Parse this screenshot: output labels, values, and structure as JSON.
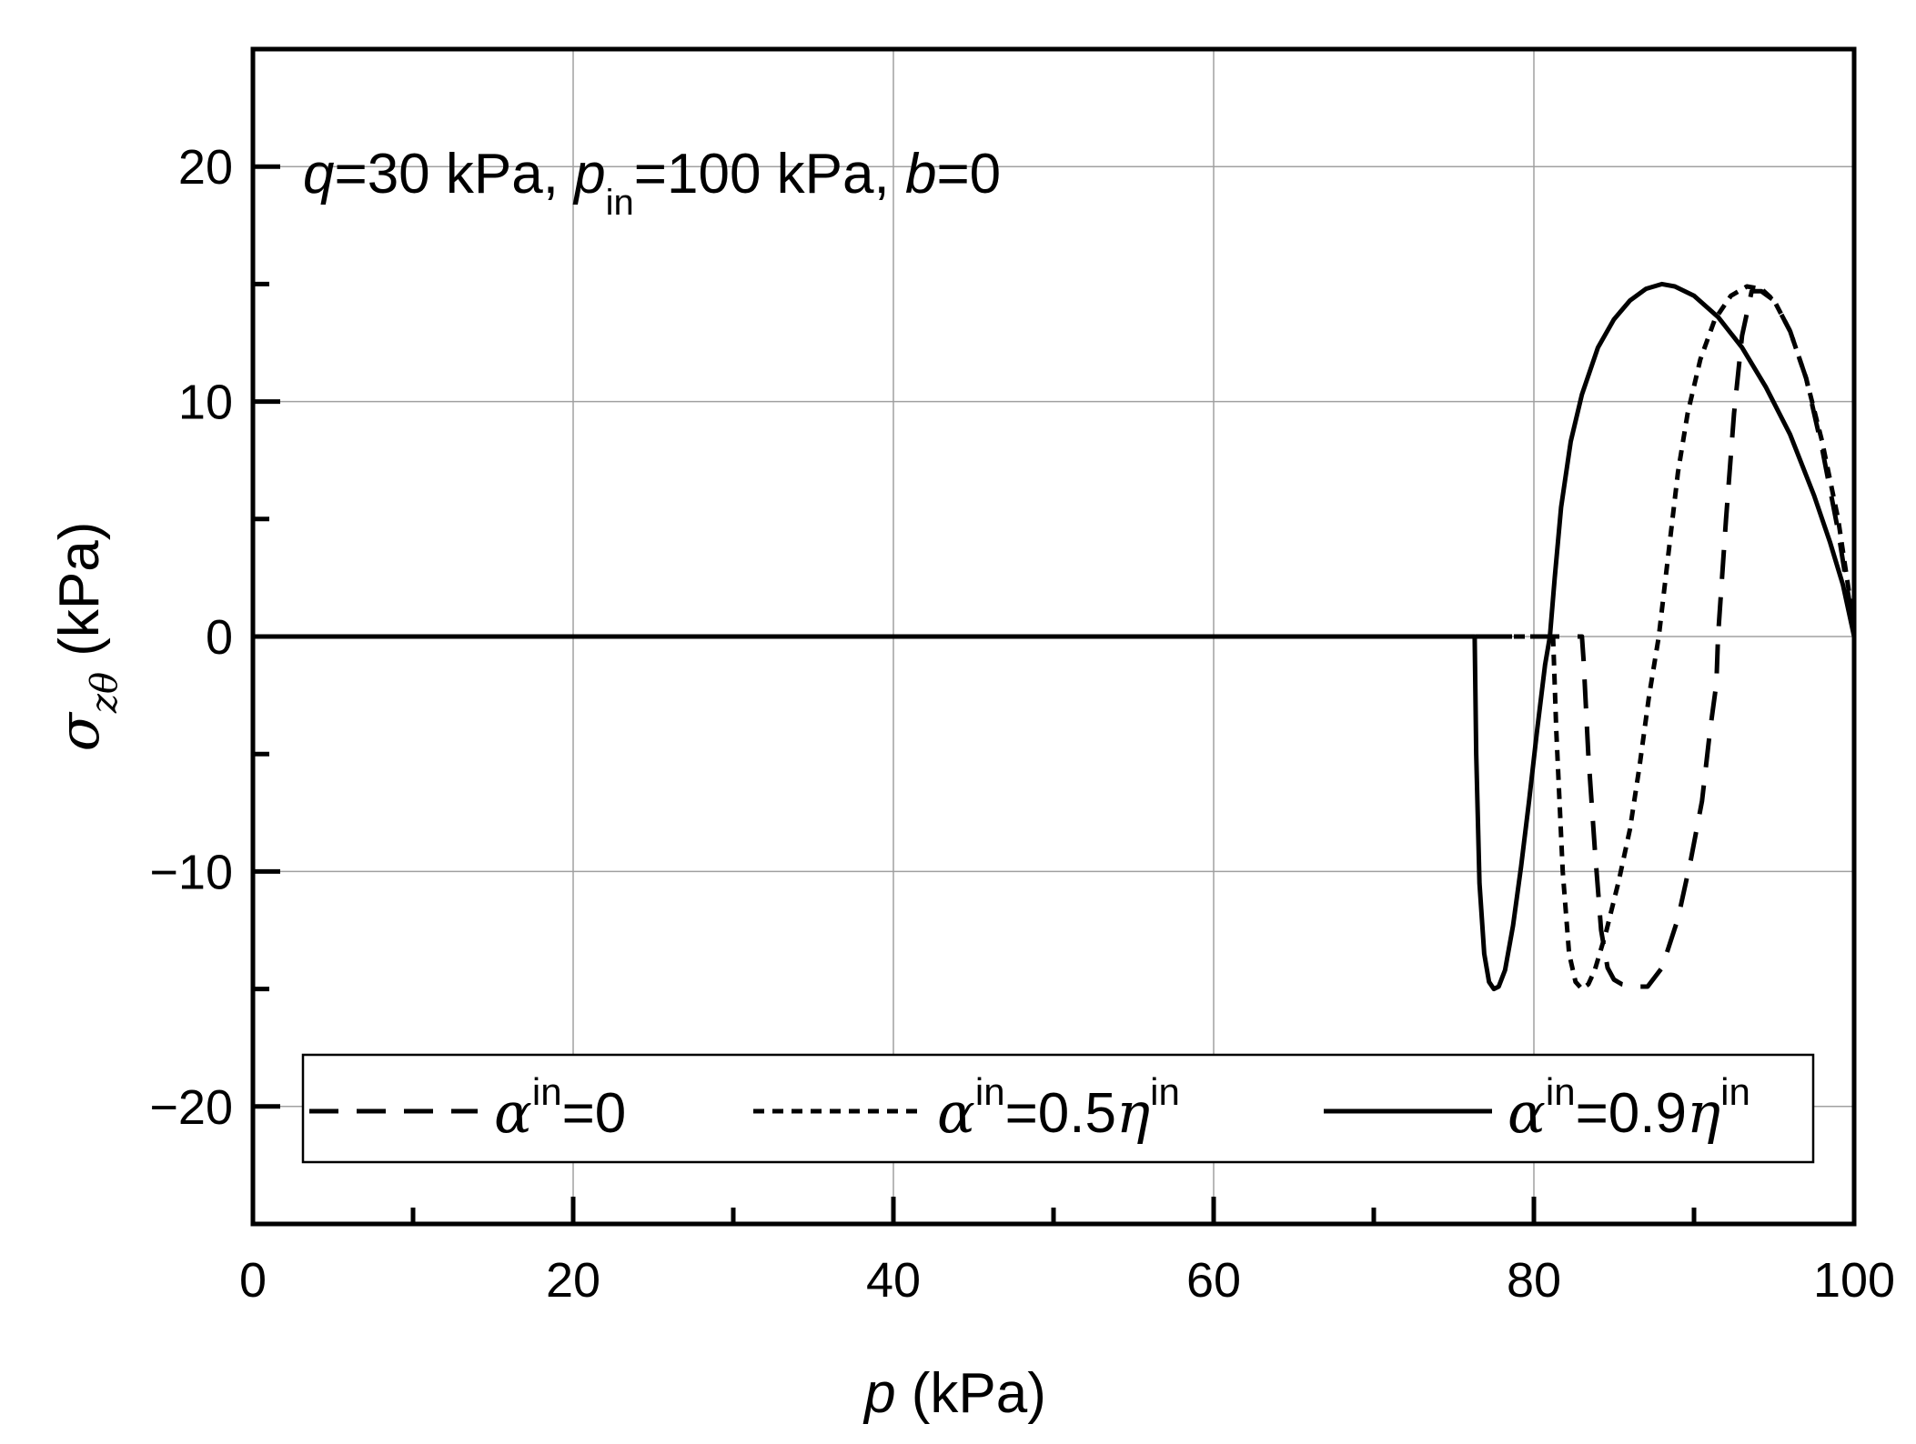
{
  "chart_data": {
    "type": "line",
    "annotation": {
      "q_sym": "q",
      "q_text": "=30 kPa, ",
      "p_sym": "p",
      "p_sub": "in",
      "p_text": "=100 kPa, ",
      "b_sym": "b",
      "b_text": "=0"
    },
    "xlabel": {
      "sym": "p",
      "unit": " (kPa)"
    },
    "ylabel": {
      "sym": "σ",
      "sub": "zθ",
      "unit": " (kPa)"
    },
    "xlim": [
      0,
      100
    ],
    "ylim": [
      -25,
      25
    ],
    "xticks": [
      0,
      20,
      40,
      60,
      80,
      100
    ],
    "xtick_labels": [
      "0",
      "20",
      "40",
      "60",
      "80",
      "100"
    ],
    "yticks": [
      -20,
      -10,
      0,
      10,
      20
    ],
    "ytick_labels": [
      "−20",
      "−10",
      "0",
      "10",
      "20"
    ],
    "grid": true,
    "legend_position": "bottom",
    "series": [
      {
        "legend_label": {
          "alpha": "α",
          "sup": "in",
          "text": "=0",
          "eta": "",
          "eta_sup": ""
        },
        "style": "dashed",
        "color": "#000000",
        "x": [
          0,
          83.0,
          83.1,
          83.4,
          83.8,
          84.2,
          84.6,
          85.0,
          85.5,
          86.3,
          87.1,
          88.0,
          89.0,
          89.8,
          90.5,
          91.0,
          91.4,
          91.5,
          92.0,
          92.5,
          93.0,
          93.6,
          94.2,
          95.0,
          96.0,
          97.0,
          98.0,
          99.0,
          99.7,
          100
        ],
        "y": [
          0,
          0,
          -1.0,
          -5.0,
          -9.0,
          -12.5,
          -14.1,
          -14.6,
          -14.8,
          -14.9,
          -14.9,
          -14.1,
          -12.0,
          -9.5,
          -7.0,
          -4.0,
          -2.0,
          0,
          5.0,
          9.5,
          12.8,
          14.7,
          14.7,
          14.3,
          13.0,
          11.0,
          8.0,
          4.5,
          1.5,
          0
        ]
      },
      {
        "legend_label": {
          "alpha": "α",
          "sup": "in",
          "text": "=0.5",
          "eta": "η",
          "eta_sup": "in"
        },
        "style": "dotted",
        "color": "#000000",
        "x": [
          0,
          81.2,
          81.4,
          81.8,
          82.2,
          82.6,
          83.0,
          83.4,
          83.8,
          84.5,
          85.3,
          86.0,
          86.6,
          87.2,
          87.8,
          88.4,
          89.0,
          89.6,
          90.4,
          91.3,
          92.3,
          93.3,
          94.2,
          95.0,
          96.0,
          97.0,
          98.0,
          99.0,
          99.7,
          100
        ],
        "y": [
          0,
          0,
          -4.0,
          -10.0,
          -13.5,
          -14.7,
          -15.0,
          -14.8,
          -14.2,
          -12.6,
          -10.4,
          -8.2,
          -5.5,
          -2.5,
          0,
          3.5,
          7.0,
          9.5,
          11.8,
          13.5,
          14.5,
          14.9,
          14.8,
          14.3,
          13.0,
          11.0,
          8.3,
          5.0,
          1.8,
          0
        ]
      },
      {
        "legend_label": {
          "alpha": "α",
          "sup": "in",
          "text": "=0.9",
          "eta": "η",
          "eta_sup": "in"
        },
        "style": "solid",
        "color": "#000000",
        "x": [
          0,
          76.3,
          76.4,
          76.6,
          76.9,
          77.2,
          77.5,
          77.8,
          78.2,
          78.7,
          79.2,
          79.7,
          80.2,
          80.7,
          81.0,
          81.3,
          81.7,
          82.3,
          83.0,
          84.0,
          85.0,
          86.0,
          87.0,
          88.0,
          88.8,
          90.0,
          91.5,
          93.0,
          94.5,
          96.0,
          97.5,
          98.5,
          99.3,
          100
        ],
        "y": [
          0,
          0,
          -5.0,
          -10.5,
          -13.5,
          -14.7,
          -15.0,
          -14.9,
          -14.2,
          -12.3,
          -9.8,
          -7.0,
          -4.0,
          -1.2,
          0,
          2.5,
          5.5,
          8.3,
          10.3,
          12.3,
          13.5,
          14.3,
          14.8,
          15.0,
          14.9,
          14.5,
          13.6,
          12.3,
          10.6,
          8.6,
          6.0,
          4.0,
          2.2,
          0
        ]
      }
    ]
  }
}
